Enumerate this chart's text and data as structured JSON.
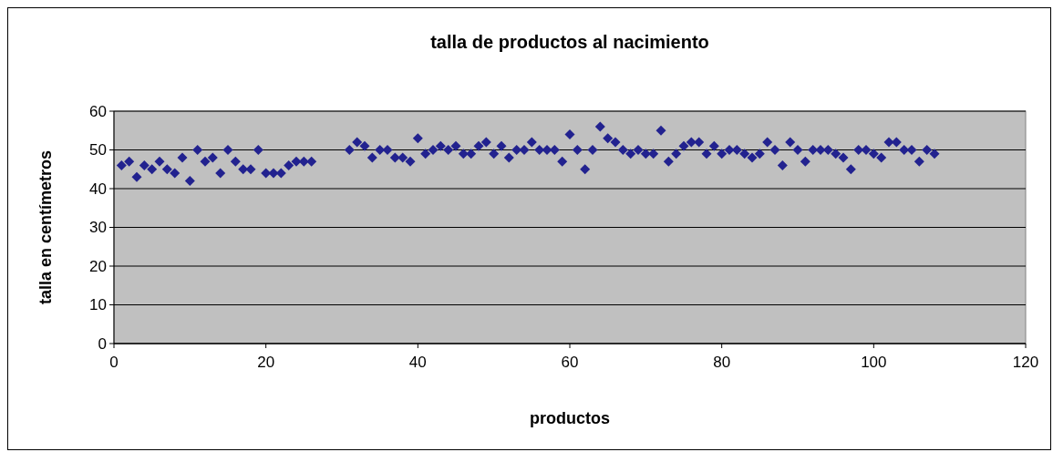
{
  "chart_data": {
    "type": "scatter",
    "title": "talla de productos al nacimiento",
    "xlabel": "productos",
    "ylabel": "talla en centímetros",
    "x": [
      1,
      2,
      3,
      4,
      5,
      6,
      7,
      8,
      9,
      10,
      11,
      12,
      13,
      14,
      15,
      16,
      17,
      18,
      19,
      20,
      21,
      22,
      23,
      24,
      25,
      26,
      31,
      32,
      33,
      34,
      35,
      36,
      37,
      38,
      39,
      40,
      41,
      42,
      43,
      44,
      45,
      46,
      47,
      48,
      49,
      50,
      51,
      52,
      53,
      54,
      55,
      56,
      57,
      58,
      59,
      60,
      61,
      62,
      63,
      64,
      65,
      66,
      67,
      68,
      69,
      70,
      71,
      72,
      73,
      74,
      75,
      76,
      77,
      78,
      79,
      80,
      81,
      82,
      83,
      84,
      85,
      86,
      87,
      88,
      89,
      90,
      91,
      92,
      93,
      94,
      95,
      96,
      97,
      98,
      99,
      100,
      101,
      102,
      103,
      104,
      105,
      106,
      107,
      108
    ],
    "series": [
      {
        "color": "#22228f",
        "values": [
          46,
          47,
          43,
          46,
          45,
          47,
          45,
          44,
          48,
          42,
          50,
          47,
          48,
          44,
          50,
          47,
          45,
          45,
          50,
          44,
          44,
          44,
          46,
          47,
          47,
          47,
          50,
          52,
          51,
          48,
          50,
          50,
          48,
          48,
          47,
          53,
          49,
          50,
          51,
          50,
          51,
          49,
          49,
          51,
          52,
          49,
          51,
          48,
          50,
          50,
          52,
          50,
          50,
          50,
          47,
          54,
          50,
          45,
          50,
          56,
          53,
          52,
          50,
          49,
          50,
          49,
          49,
          55,
          47,
          49,
          51,
          52,
          52,
          49,
          51,
          49,
          50,
          50,
          49,
          48,
          49,
          52,
          50,
          46,
          52,
          50,
          47,
          50,
          50,
          50,
          49,
          48,
          45,
          50,
          50,
          49,
          48,
          52,
          52,
          50,
          50,
          47,
          50,
          49
        ]
      }
    ],
    "xlim": [
      0,
      120
    ],
    "xticks": [
      0,
      20,
      40,
      60,
      80,
      100,
      120
    ],
    "ylim": [
      0,
      60
    ],
    "yticks": [
      0,
      10,
      20,
      30,
      40,
      50,
      60
    ],
    "grid": "y",
    "marker": "diamond"
  }
}
